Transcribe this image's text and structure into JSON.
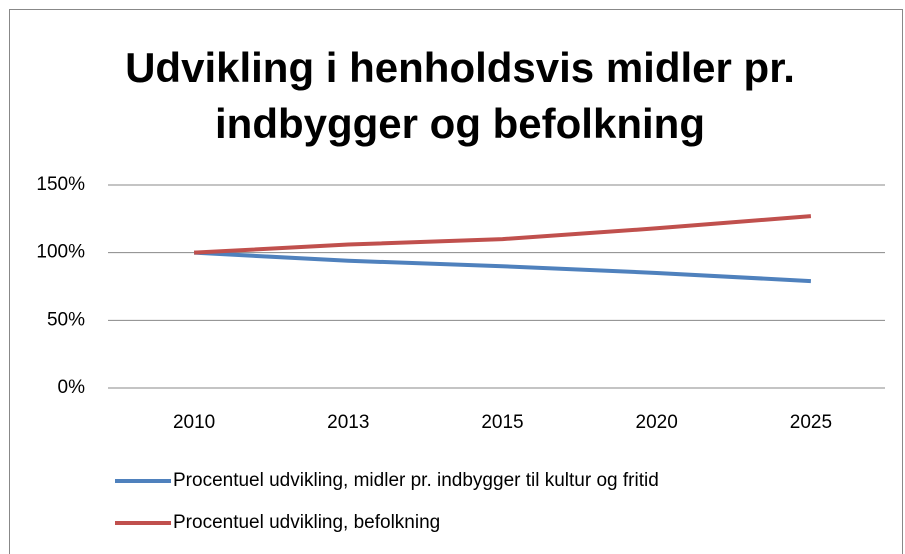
{
  "chart_data": {
    "type": "line",
    "title": "Udvikling i henholdsvis midler pr. indbygger og befolkning",
    "categories": [
      "2010",
      "2013",
      "2015",
      "2020",
      "2025"
    ],
    "series": [
      {
        "name": "Procentuel udvikling, midler pr. indbygger til kultur og fritid",
        "color": "#4f81bd",
        "values": [
          100,
          94,
          90,
          85,
          79
        ]
      },
      {
        "name": "Procentuel udvikling, befolkning",
        "color": "#c0504d",
        "values": [
          100,
          106,
          110,
          118,
          127
        ]
      }
    ],
    "ylim": [
      0,
      150
    ],
    "yticks": [
      {
        "value": 0,
        "label": "0%"
      },
      {
        "value": 50,
        "label": "50%"
      },
      {
        "value": 100,
        "label": "100%"
      },
      {
        "value": 150,
        "label": "150%"
      }
    ],
    "grid": true,
    "legend": "bottom"
  }
}
